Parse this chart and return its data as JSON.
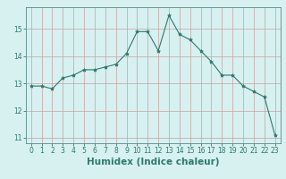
{
  "x": [
    0,
    1,
    2,
    3,
    4,
    5,
    6,
    7,
    8,
    9,
    10,
    11,
    12,
    13,
    14,
    15,
    16,
    17,
    18,
    19,
    20,
    21,
    22,
    23
  ],
  "y": [
    12.9,
    12.9,
    12.8,
    13.2,
    13.3,
    13.5,
    13.5,
    13.6,
    13.7,
    14.1,
    14.9,
    14.9,
    14.2,
    15.5,
    14.8,
    14.6,
    14.2,
    13.8,
    13.3,
    13.3,
    12.9,
    12.7,
    12.5,
    11.1
  ],
  "line_color": "#2d7a6e",
  "marker": "*",
  "marker_size": 3,
  "bg_color": "#d7f0f0",
  "grid_color": "#c8a0a0",
  "xlabel": "Humidex (Indice chaleur)",
  "xlim": [
    -0.5,
    23.5
  ],
  "ylim": [
    10.8,
    15.8
  ],
  "yticks": [
    11,
    12,
    13,
    14,
    15
  ],
  "xticks": [
    0,
    1,
    2,
    3,
    4,
    5,
    6,
    7,
    8,
    9,
    10,
    11,
    12,
    13,
    14,
    15,
    16,
    17,
    18,
    19,
    20,
    21,
    22,
    23
  ],
  "tick_label_color": "#2d7a6e",
  "xlabel_color": "#2d7a6e",
  "tick_fontsize": 5.5,
  "xlabel_fontsize": 7.5
}
